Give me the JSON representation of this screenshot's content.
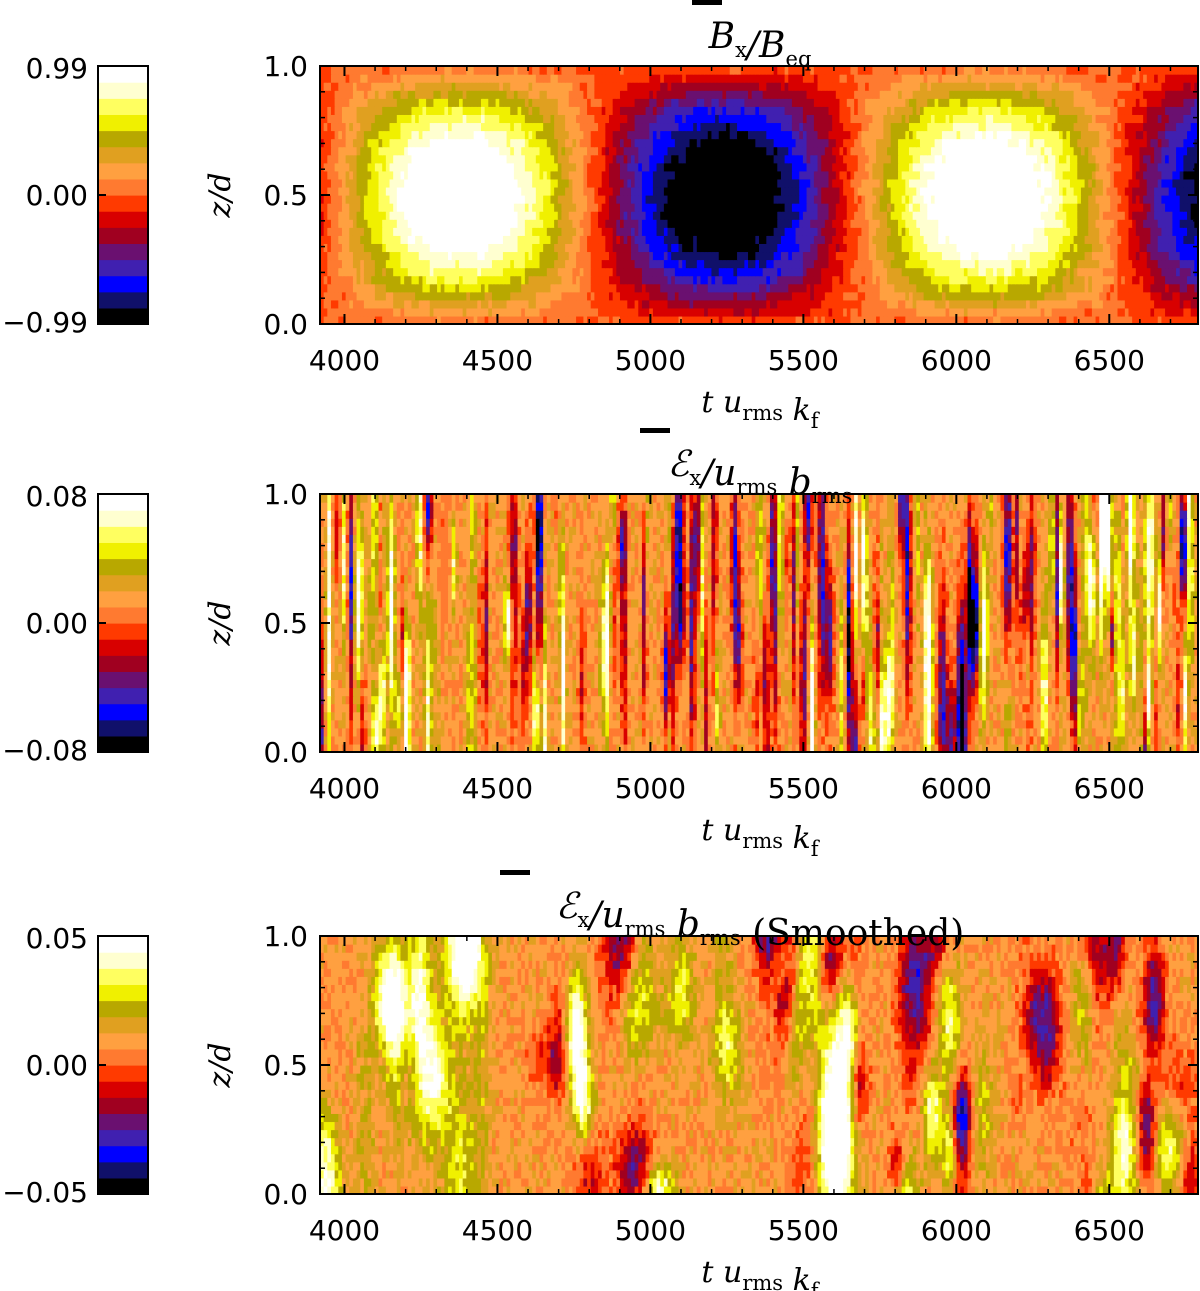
{
  "chart_data": [
    {
      "type": "heatmap",
      "title_parts": {
        "main": "B",
        "sub1": "x",
        "sep": "/B",
        "sub2": "eq",
        "suffix": ""
      },
      "xlabel": {
        "t": "t",
        "u": "u",
        "u_sub": "rms",
        "k": "k",
        "k_sub": "f"
      },
      "ylabel": "z/d",
      "xlim": [
        3920,
        6790
      ],
      "ylim": [
        0.0,
        1.0
      ],
      "xticks": [
        "4000",
        "4500",
        "5000",
        "5500",
        "6000",
        "6500"
      ],
      "xtick_values": [
        4000,
        4500,
        5000,
        5500,
        6000,
        6500
      ],
      "yticks": [
        "0.0",
        "0.5",
        "1.0"
      ],
      "ytick_values": [
        0.0,
        0.5,
        1.0
      ],
      "colorbar": {
        "min_label": "−0.99",
        "mid_label": "0.00",
        "max_label": "0.99",
        "range": [
          -0.99,
          0.99
        ]
      },
      "field": {
        "kind": "oscillating",
        "period": 1720,
        "peak_t": 4380,
        "seed": 11,
        "noise": 0.18
      }
    },
    {
      "type": "heatmap",
      "title_parts": {
        "main": "ℰ",
        "sub1": "x",
        "sep": "/u",
        "sub2": "rms",
        "mid": " b",
        "sub3": "rms",
        "suffix": ""
      },
      "xlabel": {
        "t": "t",
        "u": "u",
        "u_sub": "rms",
        "k": "k",
        "k_sub": "f"
      },
      "ylabel": "z/d",
      "xlim": [
        3920,
        6790
      ],
      "ylim": [
        0.0,
        1.0
      ],
      "xticks": [
        "4000",
        "4500",
        "5000",
        "5500",
        "6000",
        "6500"
      ],
      "xtick_values": [
        4000,
        4500,
        5000,
        5500,
        6000,
        6500
      ],
      "yticks": [
        "0.0",
        "0.5",
        "1.0"
      ],
      "ytick_values": [
        0.0,
        0.5,
        1.0
      ],
      "colorbar": {
        "min_label": "−0.08",
        "mid_label": "0.00",
        "max_label": "0.08",
        "range": [
          -0.08,
          0.08
        ]
      },
      "field": {
        "kind": "noisy",
        "seed": 23,
        "xcorr": 10,
        "ycorr": 0.12
      }
    },
    {
      "type": "heatmap",
      "title_parts": {
        "main": "ℰ",
        "sub1": "x",
        "sep": "/u",
        "sub2": "rms",
        "mid": " b",
        "sub3": "rms",
        "suffix": " (Smoothed)"
      },
      "xlabel": {
        "t": "t",
        "u": "u",
        "u_sub": "rms",
        "k": "k",
        "k_sub": "f"
      },
      "ylabel": "z/d",
      "xlim": [
        3920,
        6790
      ],
      "ylim": [
        0.0,
        1.0
      ],
      "xticks": [
        "4000",
        "4500",
        "5000",
        "5500",
        "6000",
        "6500"
      ],
      "xtick_values": [
        4000,
        4500,
        5000,
        5500,
        6000,
        6500
      ],
      "yticks": [
        "0.0",
        "0.5",
        "1.0"
      ],
      "ytick_values": [
        0.0,
        0.5,
        1.0
      ],
      "colorbar": {
        "min_label": "−0.05",
        "mid_label": "0.00",
        "max_label": "0.05",
        "range": [
          -0.05,
          0.05
        ]
      },
      "field": {
        "kind": "smoothed",
        "seed": 37,
        "xcorr": 40,
        "ycorr": 0.18
      }
    }
  ],
  "colormap": [
    "#000000",
    "#10106a",
    "#0000ff",
    "#4020b0",
    "#6a1070",
    "#a00020",
    "#d80000",
    "#ff3a00",
    "#ff7a30",
    "#ffa040",
    "#e0a020",
    "#b8a800",
    "#f0f000",
    "#ffff60",
    "#ffffd0",
    "#ffffff"
  ]
}
